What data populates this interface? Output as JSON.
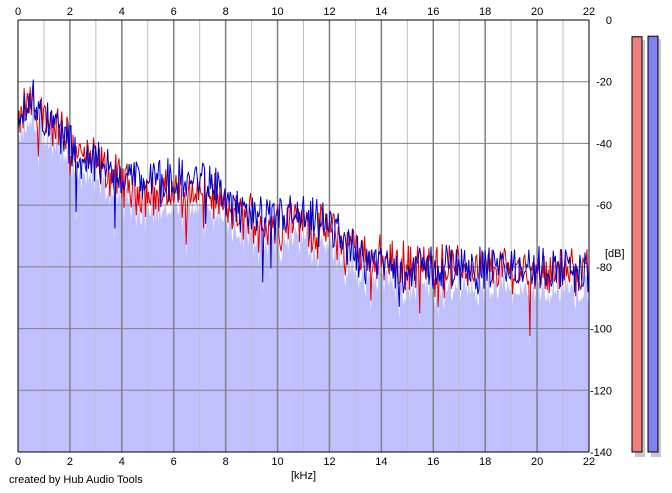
{
  "footer": {
    "credit": "created by Hub Audio Tools"
  },
  "chart_data": {
    "type": "area",
    "xlabel": "[kHz]",
    "ylabel": "[dB]",
    "xlim": [
      0,
      22
    ],
    "ylim": [
      -140,
      0
    ],
    "x_ticks": [
      0,
      2,
      4,
      6,
      8,
      10,
      12,
      14,
      16,
      18,
      20,
      22
    ],
    "x_tick_labels": [
      "0",
      "2",
      "4",
      "6",
      "8",
      "10",
      "12",
      "14",
      "16",
      "18",
      "20",
      "22"
    ],
    "y_ticks": [
      0,
      -20,
      -40,
      -60,
      -80,
      -100,
      -120,
      -140
    ],
    "y_tick_labels": [
      "0",
      "-20",
      "-40",
      "-60",
      "-80",
      "-100",
      "-120",
      "-140"
    ],
    "grid": true,
    "legend": "none",
    "series": [
      {
        "color": "#e00000",
        "x": [
          0,
          0.25,
          0.5,
          0.75,
          1,
          1.25,
          1.5,
          1.75,
          2,
          2.5,
          3,
          3.5,
          4,
          4.5,
          5,
          5.5,
          6,
          6.5,
          7,
          7.5,
          8,
          8.5,
          9,
          9.5,
          10,
          10.5,
          11,
          11.5,
          12,
          12.5,
          13,
          13.5,
          14,
          14.5,
          15,
          16,
          17,
          18,
          19,
          20,
          21,
          22
        ],
        "values": [
          -38,
          -28,
          -27,
          -30,
          -30,
          -34,
          -35,
          -36,
          -40,
          -44,
          -46,
          -50,
          -52,
          -55,
          -56,
          -57,
          -55,
          -56,
          -56,
          -57,
          -62,
          -64,
          -63,
          -67,
          -65,
          -64,
          -66,
          -68,
          -68,
          -72,
          -74,
          -76,
          -78,
          -79,
          -80,
          -80,
          -80,
          -81,
          -80,
          -81,
          -81,
          -82
        ]
      },
      {
        "color": "#0000cc",
        "x": [
          0,
          0.25,
          0.5,
          0.75,
          1,
          1.25,
          1.5,
          1.75,
          2,
          2.5,
          3,
          3.5,
          4,
          4.5,
          5,
          5.5,
          6,
          6.5,
          7,
          7.5,
          8,
          8.5,
          9,
          9.5,
          10,
          10.5,
          11,
          11.5,
          12,
          12.5,
          13,
          13.5,
          14,
          14.5,
          15,
          16,
          17,
          18,
          19,
          20,
          21,
          22
        ],
        "values": [
          -36,
          -27,
          -25,
          -28,
          -32,
          -33,
          -34,
          -37,
          -41,
          -45,
          -46,
          -49,
          -50,
          -51,
          -52,
          -53,
          -52,
          -53,
          -51,
          -53,
          -58,
          -61,
          -64,
          -66,
          -64,
          -63,
          -65,
          -66,
          -67,
          -70,
          -76,
          -78,
          -79,
          -80,
          -81,
          -80,
          -80,
          -81,
          -80,
          -81,
          -80,
          -82
        ]
      }
    ],
    "level_meters": [
      {
        "color": "#f08080",
        "value": -5
      },
      {
        "color": "#8080f0",
        "value": -4
      }
    ],
    "colors": {
      "fill": "#c0c0ff",
      "grid_major": "#808080",
      "grid_minor": "#c0c0c0",
      "axis": "#000000",
      "background": "#ffffff"
    }
  }
}
